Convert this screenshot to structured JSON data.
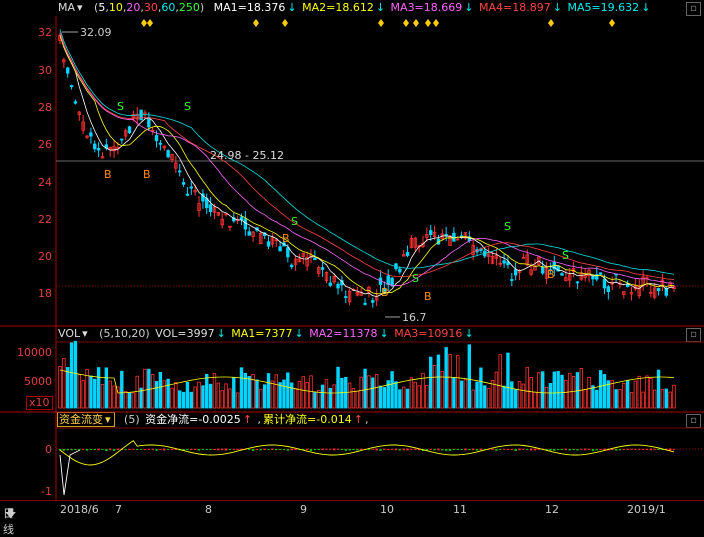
{
  "price_panel": {
    "header": {
      "ma_label": "MA",
      "ma_params_prefix": "(",
      "p5": "5",
      "p10": "10",
      "p20": "20",
      "p30": "30",
      "p60": "60",
      "p250": "250",
      "ma_params_suffix": ")",
      "ma1": "MA1=18.376",
      "ma2": "MA2=18.612",
      "ma3": "MA3=18.669",
      "ma4": "MA4=18.897",
      "ma5": "MA5=19.632"
    },
    "y_ticks": [
      "32",
      "30",
      "28",
      "26",
      "24",
      "22",
      "20",
      "18"
    ],
    "annotations": {
      "high": "32.09",
      "low": "16.7",
      "range": "24.98 - 25.12"
    },
    "signals": [
      "S",
      "B"
    ]
  },
  "volume_panel": {
    "header": {
      "label": "VOL",
      "params": "(5,10,20)",
      "vol": "VOL=3997",
      "ma1": "MA1=7377",
      "ma2": "MA2=11378",
      "ma3": "MA3=10916"
    },
    "y_ticks": [
      "10000",
      "5000"
    ],
    "unit": "x10"
  },
  "flow_panel": {
    "header": {
      "dropdown": "资金流变",
      "param": "(5)",
      "net": "资金净流=-0.0025",
      "cum": "累计净流=-0.014"
    },
    "y_ticks": [
      "0",
      "-1"
    ]
  },
  "bottom_bar": {
    "period": "日线",
    "dates": [
      "2018/6",
      "7",
      "8",
      "9",
      "10",
      "11",
      "12",
      "2019/1"
    ]
  },
  "colors": {
    "up": "#ff3333",
    "down": "#00d4ff",
    "ma5": "#ffffff",
    "ma10": "#ffff00",
    "ma20": "#ff66ff",
    "ma30": "#00e0e0",
    "ma60": "#ff4444",
    "ma250": "#33ff33"
  }
}
